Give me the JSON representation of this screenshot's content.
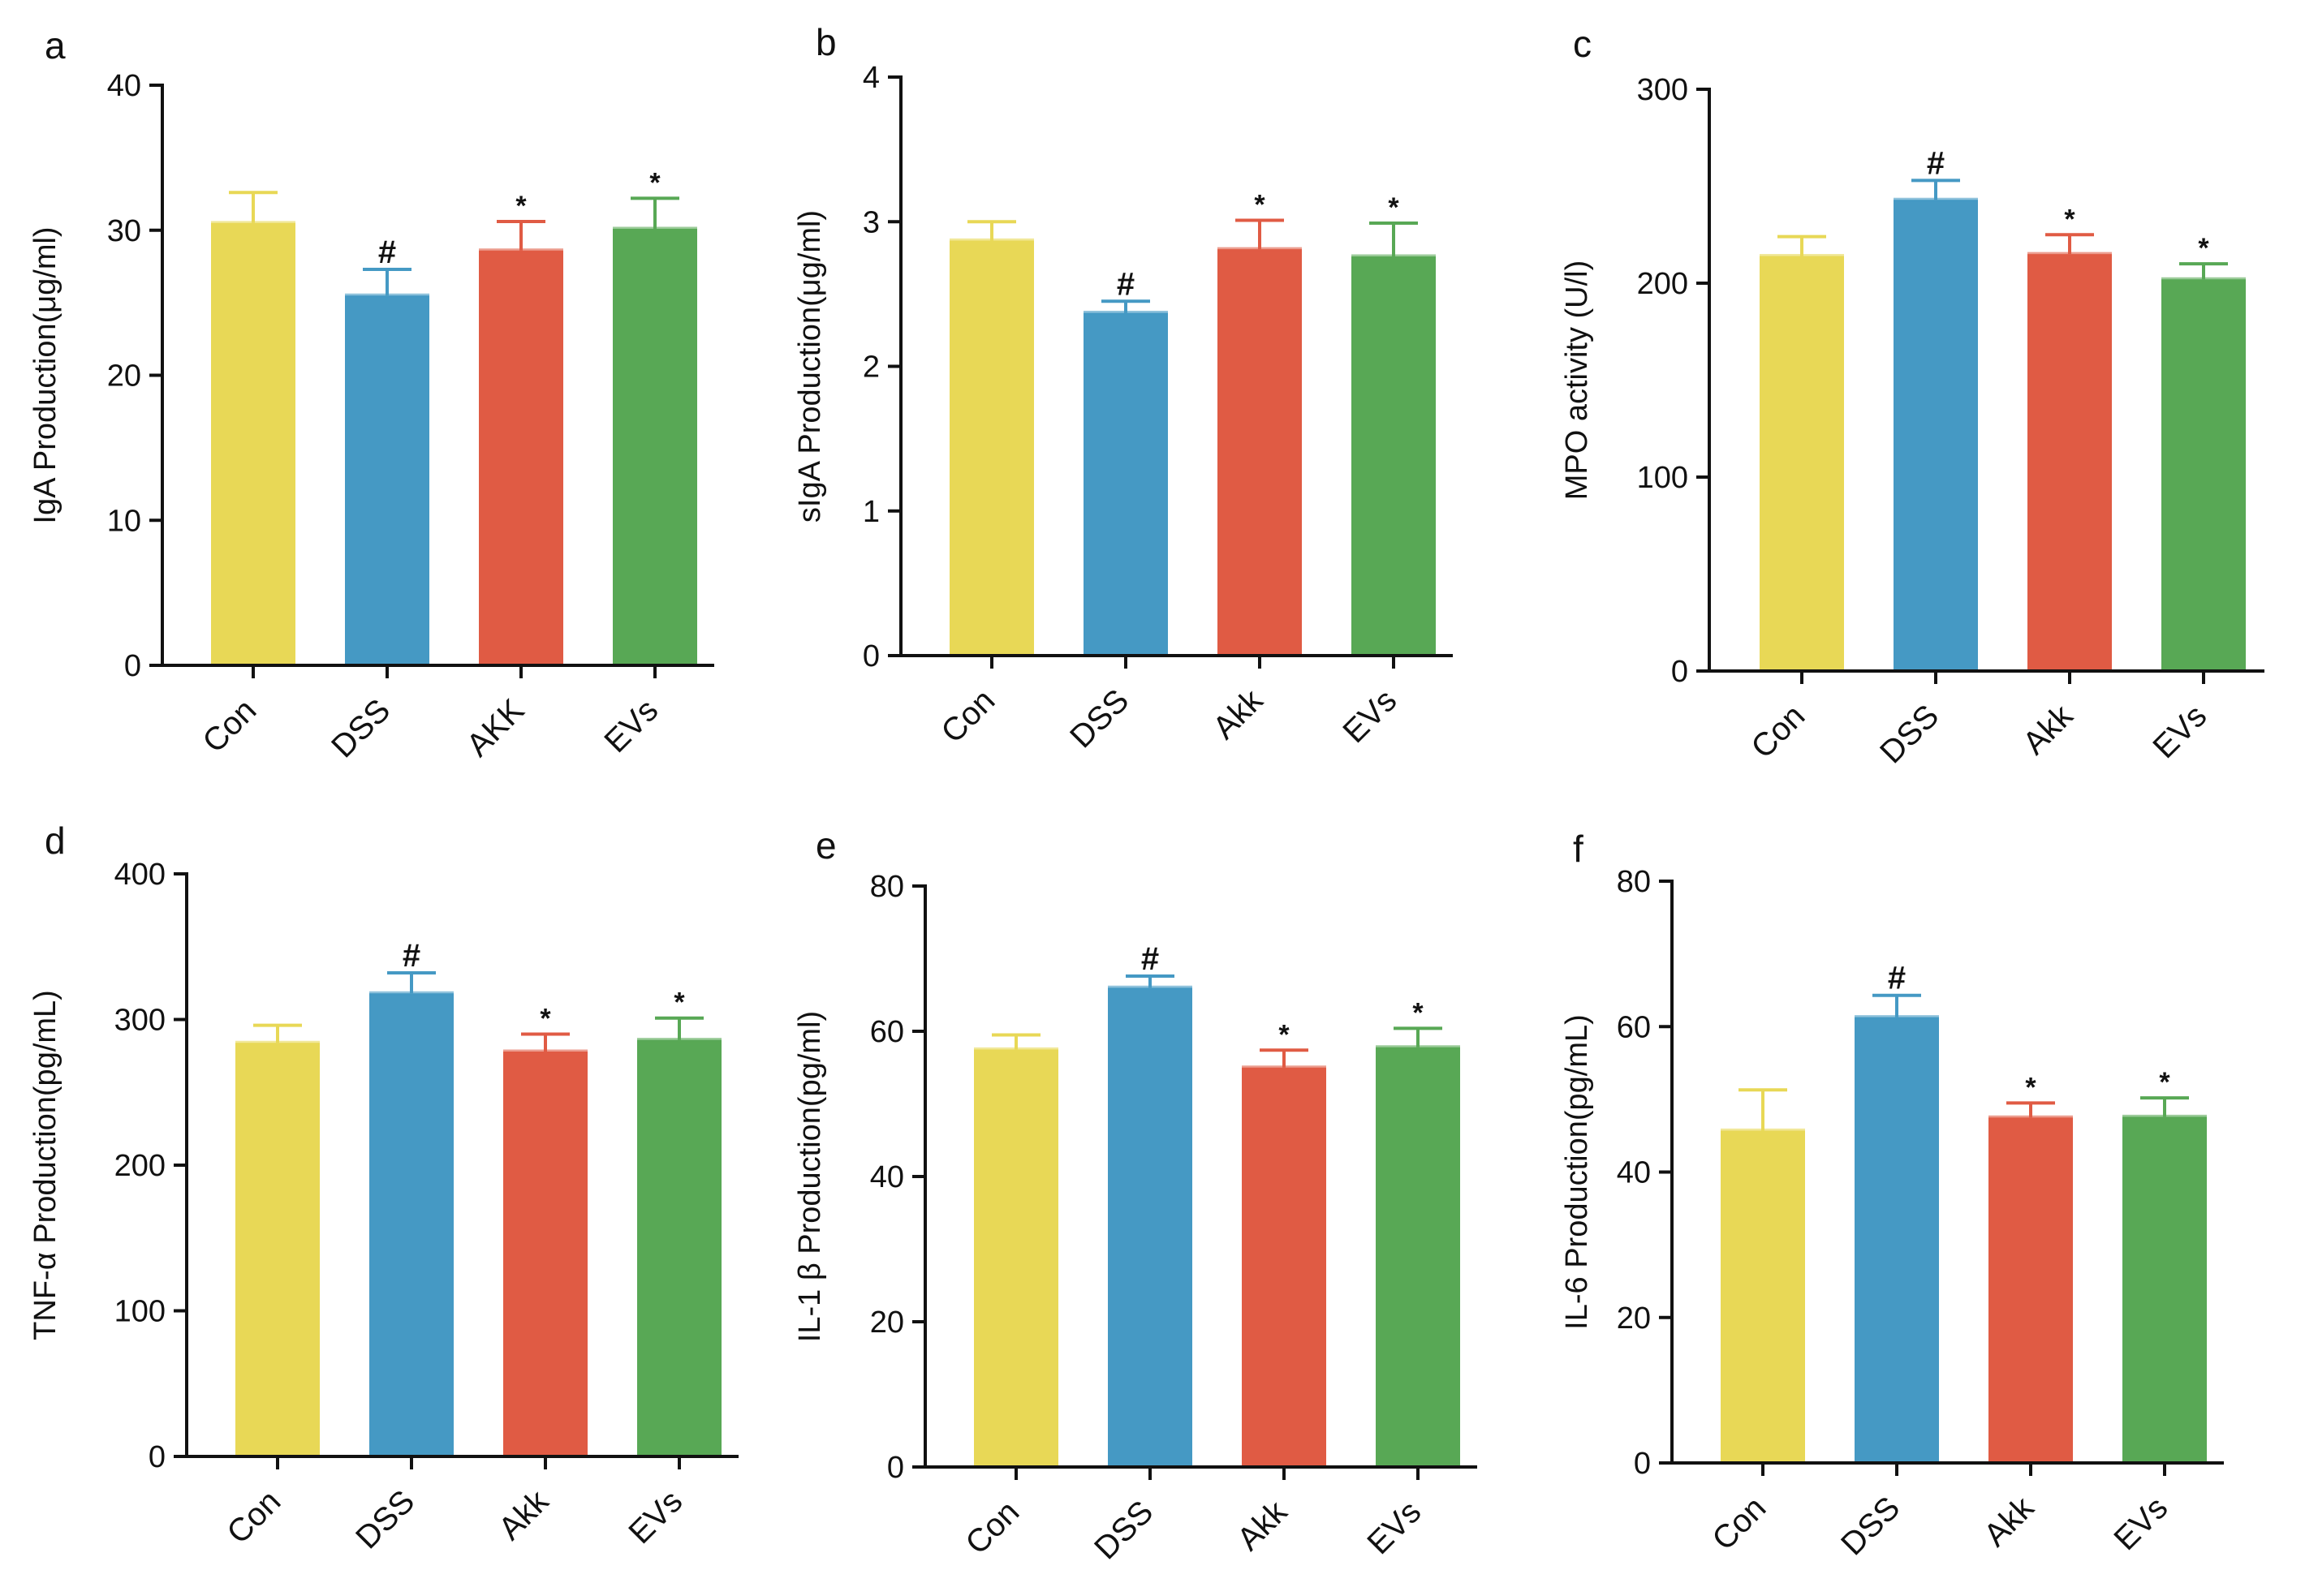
{
  "colors": {
    "Con": "#e8d856",
    "DSS": "#4599c4",
    "AKK": "#e05b44",
    "EVs": "#58a855",
    "axis": "#111111"
  },
  "chart_data": [
    {
      "panel": "a",
      "type": "bar",
      "categories": [
        "Con",
        "DSS",
        "AKK",
        "EVs"
      ],
      "values": [
        30.5,
        25.5,
        28.6,
        30.1
      ],
      "errors": [
        2.1,
        1.8,
        2.0,
        2.1
      ],
      "marks": [
        "",
        "#",
        "*",
        "*"
      ],
      "ylabel": "IgA Production(μg/ml)",
      "ylim": [
        0,
        40
      ],
      "yticks": [
        0,
        10,
        20,
        30,
        40
      ],
      "grid": false
    },
    {
      "panel": "b",
      "type": "bar",
      "categories": [
        "Con",
        "DSS",
        "Akk",
        "EVs"
      ],
      "values": [
        2.87,
        2.37,
        2.81,
        2.76
      ],
      "errors": [
        0.13,
        0.08,
        0.2,
        0.23
      ],
      "marks": [
        "",
        "#",
        "*",
        "*"
      ],
      "ylabel": "sIgA Production(μg/ml)",
      "ylim": [
        0,
        4
      ],
      "yticks": [
        0,
        1,
        2,
        3,
        4
      ],
      "grid": false
    },
    {
      "panel": "c",
      "type": "bar",
      "categories": [
        "Con",
        "DSS",
        "Akk",
        "EVs"
      ],
      "values": [
        214,
        243,
        215,
        202
      ],
      "errors": [
        10,
        10,
        10,
        8
      ],
      "marks": [
        "",
        "#",
        "*",
        "*"
      ],
      "ylabel": "MPO activity (U/l)",
      "ylim": [
        0,
        300
      ],
      "yticks": [
        0,
        100,
        200,
        300
      ],
      "grid": false
    },
    {
      "panel": "d",
      "type": "bar",
      "categories": [
        "Con",
        "DSS",
        "Akk",
        "EVs"
      ],
      "values": [
        284,
        318,
        278,
        286
      ],
      "errors": [
        12,
        14,
        12,
        15
      ],
      "marks": [
        "",
        "#",
        "*",
        "*"
      ],
      "ylabel": "TNF-α Production(pg/mL)",
      "ylim": [
        0,
        400
      ],
      "yticks": [
        0,
        100,
        200,
        300,
        400
      ],
      "grid": false
    },
    {
      "panel": "e",
      "type": "bar",
      "categories": [
        "Con",
        "DSS",
        "Akk",
        "EVs"
      ],
      "values": [
        57.5,
        66.0,
        55.0,
        57.8
      ],
      "errors": [
        2.0,
        1.6,
        2.4,
        2.6
      ],
      "marks": [
        "",
        "#",
        "*",
        "*"
      ],
      "ylabel": "IL-1 β Production(pg/ml)",
      "ylim": [
        0,
        80
      ],
      "yticks": [
        0,
        20,
        40,
        60,
        80
      ],
      "grid": false
    },
    {
      "panel": "f",
      "type": "bar",
      "categories": [
        "Con",
        "DSS",
        "Akk",
        "EVs"
      ],
      "values": [
        45.7,
        61.3,
        47.5,
        47.6
      ],
      "errors": [
        5.6,
        3.0,
        2.0,
        2.6
      ],
      "marks": [
        "",
        "#",
        "*",
        "*"
      ],
      "ylabel": "IL-6 Production(pg/mL)",
      "ylim": [
        0,
        80
      ],
      "yticks": [
        0,
        20,
        40,
        60,
        80
      ],
      "grid": false
    }
  ]
}
